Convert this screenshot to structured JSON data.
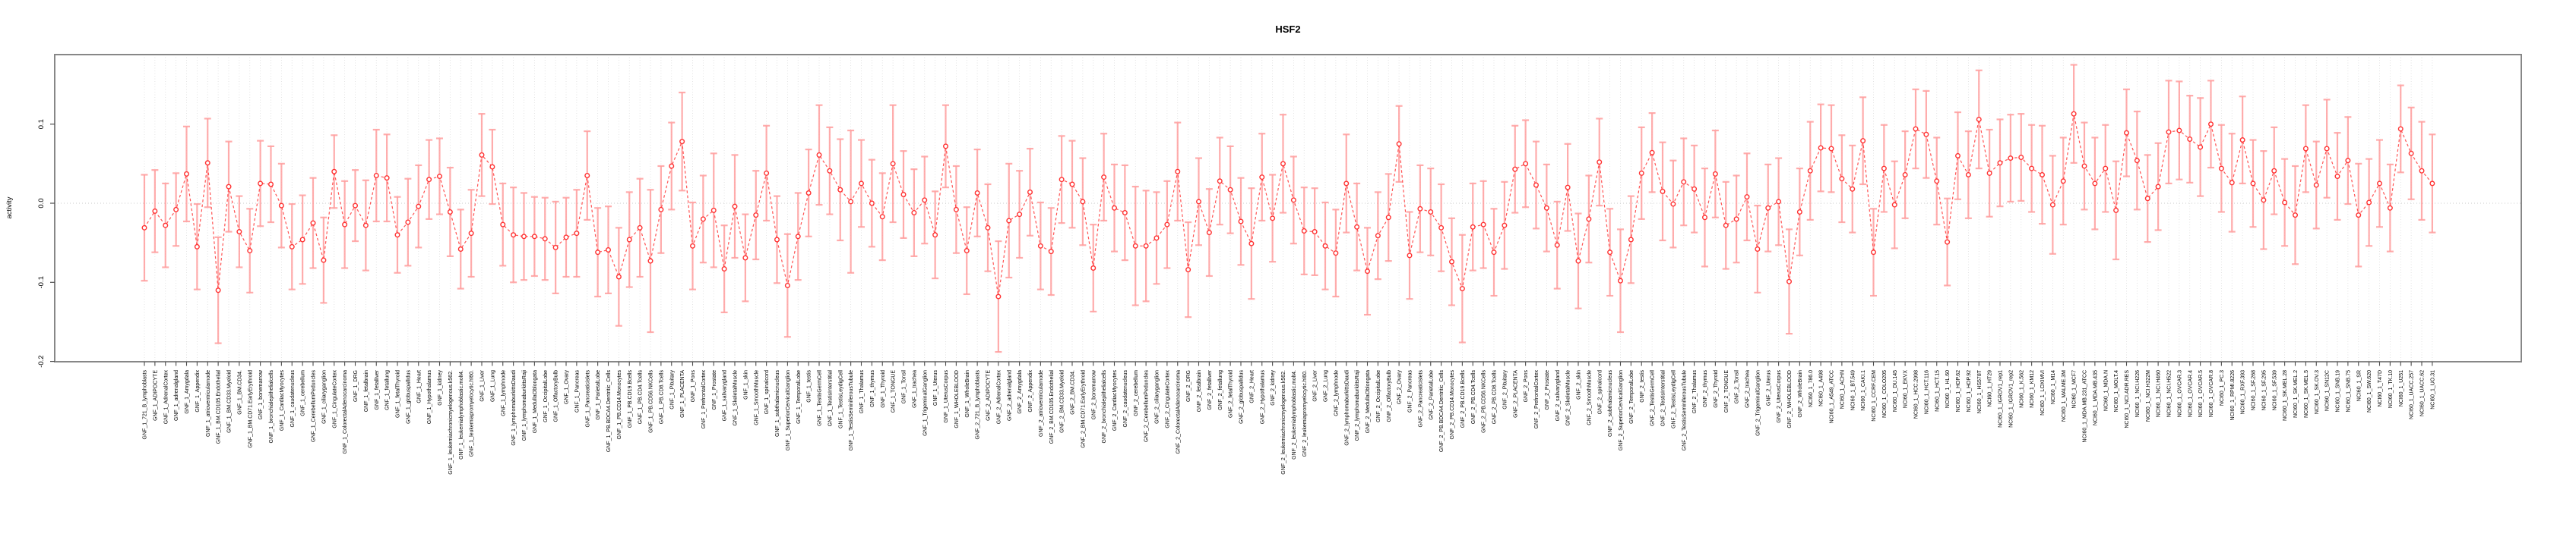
{
  "chart_data": {
    "type": "line",
    "subtype": "points-with-error-bars",
    "title": "HSF2",
    "xlabel": "",
    "ylabel": "activity",
    "ytick_labels": [
      "0.1",
      "0.0",
      "-0.1",
      "-0.2"
    ],
    "yticks": [
      0.1,
      0.0,
      -0.1,
      -0.2
    ],
    "ylim": [
      -0.2,
      0.188
    ],
    "grid": "dotted vertical gridline per category, dotted horizontal line at y=0",
    "legend": "none",
    "point_color": "#ff3333",
    "line_color": "#ff4040",
    "errorbar_color": "#ff9e9e",
    "frame_color": "#878787",
    "categories": [
      "GNF_1_721_B_lymphoblasts",
      "GNF_1_ADIPOCYTE",
      "GNF_1_AdrenalCortex",
      "GNF_1_adrenalgland",
      "GNF_1_Amygdala",
      "GNF_1_Appendix",
      "GNF_1_atrioventricularnode",
      "GNF_1_BM.CD105.Endothelial",
      "GNF_1_BM.CD33.Myeloid",
      "GNF_1_BM.CD34.",
      "GNF_1_BM.CD71.EarlyErythroid",
      "GNF_1_bonemarrow",
      "GNF_1_bronchialepithelialcells",
      "GNF_1_CardiacMyocytes",
      "GNF_1_caudatenucleus",
      "GNF_1_cerebellum",
      "GNF_1_CerebellumPeduncles",
      "GNF_1_ciliaryganglion",
      "GNF_1_CingulateCortex",
      "GNF_1_ColorectalAdenocarcinoma",
      "GNF_1_DRG",
      "GNF_1_fetalbrain",
      "GNF_1_fetalliver",
      "GNF_1_fetallung",
      "GNF_1_fetalThyroid",
      "GNF_1_globuspallidus",
      "GNF_1_Heart",
      "GNF_1_Hypothalamus",
      "GNF_1_kidney",
      "GNF_1_leukemiachronicmyelogenous.k562.",
      "GNF_1_leukemialymphoblastic.molt4.",
      "GNF_1_leukemiapromyelocytic.hl60.",
      "GNF_1_Liver",
      "GNF_1_Lung",
      "GNF_1_lymphnode",
      "GNF_1_lymphomaburkittsDaudi",
      "GNF_1_lymphomaburkittsRaji",
      "GNF_1_MedullaOblongata",
      "GNF_1_OccipitalLobe",
      "GNF_1_OlfactoryBulb",
      "GNF_1_Ovary",
      "GNF_1_Pancreas",
      "GNF_1_Pancreaticislets",
      "GNF_1_ParietalLobe",
      "GNF_1_PB.BDCA4.Dentritic_Cells",
      "GNF_1_PB.CD14.Monocytes",
      "GNF_1_PB.CD19.Bcells",
      "GNF_1_PB.CD4.Tcells",
      "GNF_1_PB.CD56.NKCells",
      "GNF_1_PB.CD8.Tcells",
      "GNF_1_Pituitary",
      "GNF_1_PLACENTA",
      "GNF_1_Pons",
      "GNF_1_PrefrontalCortex",
      "GNF_1_Prostate",
      "GNF_1_salivarygland",
      "GNF_1_SkeletalMuscle",
      "GNF_1_skin",
      "GNF_1_SmoothMuscle",
      "GNF_1_spinalcord",
      "GNF_1_subthalamicnucleus",
      "GNF_1_SuperiorCervicalGanglion",
      "GNF_1_TemporalLobe",
      "GNF_1_testis",
      "GNF_1_TestisGermCell",
      "GNF_1_TestisInterstitial",
      "GNF_1_TestisLeydigCell",
      "GNF_1_TestisSeminiferousTubule",
      "GNF_1_Thalamus",
      "GNF_1_thymus",
      "GNF_1_Thyroid",
      "GNF_1_TONGUE",
      "GNF_1_Tonsil",
      "GNF_1_trachea",
      "GNF_1_TrigeminalGanglion",
      "GNF_1_Uterus",
      "GNF_1_UterusCorpus",
      "GNF_1_WHOLEBLOOD",
      "GNF_1_WholeBrain",
      "GNF_2_721_B_lymphoblasts",
      "GNF_2_ADIPOCYTE",
      "GNF_2_AdrenalCortex",
      "GNF_2_adrenalgland",
      "GNF_2_Amygdala",
      "GNF_2_Appendix",
      "GNF_2_atrioventricularnode",
      "GNF_2_BM.CD105.Endothelial",
      "GNF_2_BM.CD33.Myeloid",
      "GNF_2_BM.CD34.",
      "GNF_2_BM.CD71.EarlyErythroid",
      "GNF_2_bonemarrow",
      "GNF_2_bronchialepithelialcells",
      "GNF_2_CardiacMyocytes",
      "GNF_2_caudatenucleus",
      "GNF_2_cerebellum",
      "GNF_2_CerebellumPeduncles",
      "GNF_2_ciliaryganglion",
      "GNF_2_CingulateCortex",
      "GNF_2_ColorectalAdenocarcinoma",
      "GNF_2_DRG",
      "GNF_2_fetalbrain",
      "GNF_2_fetalliver",
      "GNF_2_fetallung",
      "GNF_2_fetalThyroid",
      "GNF_2_globuspallidus",
      "GNF_2_Heart",
      "GNF_2_Hypothalamus",
      "GNF_2_kidney",
      "GNF_2_leukemiachronicmyelogenous.k562.",
      "GNF_2_leukemialymphoblastic.molt4.",
      "GNF_2_leukemiapromyelocytic.hl60.",
      "GNF_2_Liver",
      "GNF_2_Lung",
      "GNF_2_lymphnode",
      "GNF_2_lymphomaburkittsDaudi",
      "GNF_2_lymphomaburkittsRaji",
      "GNF_2_MedullaOblongata",
      "GNF_2_OccipitalLobe",
      "GNF_2_OlfactoryBulb",
      "GNF_2_Ovary",
      "GNF_2_Pancreas",
      "GNF_2_Pancreaticislets",
      "GNF_2_ParietalLobe",
      "GNF_2_PB.BDCA4.Dentritic_Cells",
      "GNF_2_PB.CD14.Monocytes",
      "GNF_2_PB.CD19.Bcells",
      "GNF_2_PB.CD4.Tcells",
      "GNF_2_PB.CD56.NKCells",
      "GNF_2_PB.CD8.Tcells",
      "GNF_2_Pituitary",
      "GNF_2_PLACENTA",
      "GNF_2_Pons",
      "GNF_2_PrefrontalCortex",
      "GNF_2_Prostate",
      "GNF_2_salivarygland",
      "GNF_2_SkeletalMuscle",
      "GNF_2_skin",
      "GNF_2_SmoothMuscle",
      "GNF_2_spinalcord",
      "GNF_2_subthalamicnucleus",
      "GNF_2_SuperiorCervicalGanglion",
      "GNF_2_TemporalLobe",
      "GNF_2_testis",
      "GNF_2_TestisGermCell",
      "GNF_2_TestisInterstitial",
      "GNF_2_TestisLeydigCell",
      "GNF_2_TestisSeminiferousTubule",
      "GNF_2_Thalamus",
      "GNF_2_thymus",
      "GNF_2_Thyroid",
      "GNF_2_TONGUE",
      "GNF_2_Tonsil",
      "GNF_2_trachea",
      "GNF_2_TrigeminalGanglion",
      "GNF_2_Uterus",
      "GNF_2_UterusCorpus",
      "GNF_2_WHOLEBLOOD",
      "GNF_2_WholeBrain",
      "NCI60_1_786.0",
      "NCI60_1_A498",
      "NCI60_1_A549_ATCC",
      "NCI60_1_ACHN",
      "NCI60_1_BT.549",
      "NCI60_1_CAKI.1",
      "NCI60_1_CCRF.CEM",
      "NCI60_1_COLO205",
      "NCI60_1_DU.145",
      "NCI60_1_EKVX",
      "NCI60_1_HCC.2998",
      "NCI60_1_HCT.116",
      "NCI60_1_HCT.15",
      "NCI60_1_HL.60",
      "NCI60_1_HOP.62",
      "NCI60_1_HOP.92",
      "NCI60_1_HS578T",
      "NCI60_1_HT29",
      "NCI60_1_IGROV1_rep1",
      "NCI60_1_IGROV1_rep2",
      "NCI60_1_K.562",
      "NCI60_1_KM12",
      "NCI60_1_LOXIMVI",
      "NCI60_1_M14",
      "NCI60_1_MALME.3M",
      "NCI60_1_MCF7",
      "NCI60_1_MDA.MB.231_ATCC",
      "NCI60_1_MDA.MB.435",
      "NCI60_1_MDA.N",
      "NCI60_1_MOLT.4",
      "NCI60_1_NCI.ADR.RES",
      "NCI60_1_NCI.H226",
      "NCI60_1_NCI.H322M",
      "NCI60_1_NCI.H460",
      "NCI60_1_NCI.H522",
      "NCI60_1_OVCAR.3",
      "NCI60_1_OVCAR.4",
      "NCI60_1_OVCAR.5",
      "NCI60_1_OVCAR.8",
      "NCI60_1_PC.3",
      "NCI60_1_RPMI.8226",
      "NCI60_1_RXF.393",
      "NCI60_1_SF.268",
      "NCI60_1_SF.295",
      "NCI60_1_SF.539",
      "NCI60_1_SK.MEL.28",
      "NCI60_1_SK.MEL.2",
      "NCI60_1_SK.MEL.5",
      "NCI60_1_SK.OV.3",
      "NCI60_1_SN12C",
      "NCI60_1_SNB.19",
      "NCI60_1_SNB.75",
      "NCI60_1_SR",
      "NCI60_1_SW.620",
      "NCI60_1_T47D",
      "NCI60_1_TK.10",
      "NCI60_1_U251",
      "NCI60_1_UACC.257",
      "NCI60_1_UACC.62",
      "NCI60_1_UO.31"
    ],
    "values": [
      -0.031,
      -0.01,
      -0.028,
      -0.008,
      0.037,
      -0.055,
      0.051,
      -0.11,
      0.021,
      -0.036,
      -0.06,
      0.025,
      0.024,
      -0.003,
      -0.055,
      -0.046,
      -0.025,
      -0.072,
      0.04,
      -0.027,
      -0.003,
      -0.028,
      0.035,
      0.032,
      -0.04,
      -0.024,
      -0.004,
      0.03,
      0.034,
      -0.011,
      -0.058,
      -0.038,
      0.061,
      0.046,
      -0.027,
      -0.04,
      -0.042,
      -0.042,
      -0.045,
      -0.056,
      -0.043,
      -0.038,
      0.035,
      -0.062,
      -0.059,
      -0.093,
      -0.046,
      -0.031,
      -0.073,
      -0.008,
      0.047,
      0.078,
      -0.054,
      -0.02,
      -0.009,
      -0.083,
      -0.004,
      -0.069,
      -0.015,
      0.038,
      -0.046,
      -0.104,
      -0.042,
      0.013,
      0.061,
      0.041,
      0.017,
      0.002,
      0.025,
      0.0,
      -0.017,
      0.05,
      0.011,
      -0.012,
      0.004,
      -0.04,
      0.072,
      -0.008,
      -0.06,
      0.013,
      -0.031,
      -0.118,
      -0.022,
      -0.014,
      0.014,
      -0.054,
      -0.061,
      0.03,
      0.024,
      0.002,
      -0.082,
      0.033,
      -0.006,
      -0.012,
      -0.054,
      -0.054,
      -0.044,
      -0.027,
      0.04,
      -0.084,
      0.002,
      -0.037,
      0.028,
      0.017,
      -0.023,
      -0.051,
      0.033,
      -0.019,
      0.05,
      0.004,
      -0.035,
      -0.036,
      -0.054,
      -0.063,
      0.025,
      -0.03,
      -0.086,
      -0.041,
      -0.018,
      0.075,
      -0.066,
      -0.007,
      -0.011,
      -0.031,
      -0.074,
      -0.108,
      -0.03,
      -0.027,
      -0.062,
      -0.028,
      0.043,
      0.05,
      0.023,
      -0.006,
      -0.053,
      0.02,
      -0.073,
      -0.02,
      0.052,
      -0.062,
      -0.098,
      -0.046,
      0.038,
      0.064,
      0.015,
      -0.001,
      0.027,
      0.018,
      -0.018,
      0.037,
      -0.028,
      -0.02,
      0.008,
      -0.058,
      -0.006,
      0.002,
      -0.099,
      -0.011,
      0.041,
      0.07,
      0.069,
      0.031,
      0.018,
      0.079,
      -0.062,
      0.044,
      -0.002,
      0.036,
      0.094,
      0.087,
      0.028,
      -0.049,
      0.06,
      0.036,
      0.106,
      0.038,
      0.051,
      0.057,
      0.058,
      0.044,
      0.036,
      -0.002,
      0.028,
      0.113,
      0.047,
      0.025,
      0.044,
      -0.009,
      0.089,
      0.054,
      0.006,
      0.021,
      0.09,
      0.092,
      0.081,
      0.071,
      0.1,
      0.044,
      0.026,
      0.08,
      0.025,
      0.004,
      0.041,
      0.001,
      -0.015,
      0.069,
      0.023,
      0.069,
      0.034,
      0.054,
      -0.015,
      0.001,
      0.025,
      -0.006,
      0.094,
      0.063,
      0.041,
      0.025
    ],
    "errors": [
      0.067,
      0.052,
      0.053,
      0.046,
      0.06,
      0.054,
      0.056,
      0.067,
      0.057,
      0.045,
      0.053,
      0.054,
      0.048,
      0.053,
      0.054,
      0.056,
      0.057,
      0.054,
      0.046,
      0.055,
      0.045,
      0.057,
      0.058,
      0.055,
      0.048,
      0.055,
      0.052,
      0.05,
      0.048,
      0.056,
      0.05,
      0.055,
      0.052,
      0.047,
      0.052,
      0.06,
      0.055,
      0.05,
      0.052,
      0.058,
      0.05,
      0.055,
      0.056,
      0.056,
      0.055,
      0.062,
      0.06,
      0.062,
      0.09,
      0.055,
      0.055,
      0.062,
      0.055,
      0.055,
      0.072,
      0.055,
      0.065,
      0.055,
      0.056,
      0.06,
      0.055,
      0.065,
      0.055,
      0.055,
      0.063,
      0.055,
      0.064,
      0.09,
      0.055,
      0.055,
      0.055,
      0.074,
      0.055,
      0.055,
      0.055,
      0.055,
      0.052,
      0.055,
      0.055,
      0.055,
      0.055,
      0.07,
      0.072,
      0.055,
      0.055,
      0.055,
      0.055,
      0.055,
      0.055,
      0.055,
      0.055,
      0.055,
      0.055,
      0.06,
      0.075,
      0.07,
      0.058,
      0.055,
      0.062,
      0.06,
      0.055,
      0.055,
      0.055,
      0.055,
      0.055,
      0.07,
      0.055,
      0.055,
      0.062,
      0.055,
      0.055,
      0.055,
      0.055,
      0.055,
      0.062,
      0.055,
      0.055,
      0.055,
      0.055,
      0.048,
      0.055,
      0.055,
      0.055,
      0.055,
      0.055,
      0.068,
      0.055,
      0.055,
      0.055,
      0.055,
      0.055,
      0.055,
      0.055,
      0.055,
      0.055,
      0.055,
      0.06,
      0.055,
      0.055,
      0.055,
      0.065,
      0.055,
      0.058,
      0.05,
      0.062,
      0.055,
      0.055,
      0.055,
      0.062,
      0.055,
      0.055,
      0.055,
      0.055,
      0.055,
      0.055,
      0.055,
      0.066,
      0.055,
      0.062,
      0.055,
      0.055,
      0.055,
      0.055,
      0.055,
      0.055,
      0.055,
      0.055,
      0.055,
      0.05,
      0.055,
      0.055,
      0.055,
      0.055,
      0.055,
      0.062,
      0.055,
      0.055,
      0.055,
      0.055,
      0.055,
      0.062,
      0.062,
      0.055,
      0.062,
      0.055,
      0.058,
      0.055,
      0.062,
      0.055,
      0.062,
      0.055,
      0.055,
      0.065,
      0.062,
      0.055,
      0.062,
      0.055,
      0.055,
      0.062,
      0.055,
      0.055,
      0.062,
      0.055,
      0.055,
      0.062,
      0.055,
      0.055,
      0.062,
      0.055,
      0.055,
      0.065,
      0.055,
      0.055,
      0.055,
      0.055,
      0.058,
      0.062,
      0.062
    ]
  }
}
